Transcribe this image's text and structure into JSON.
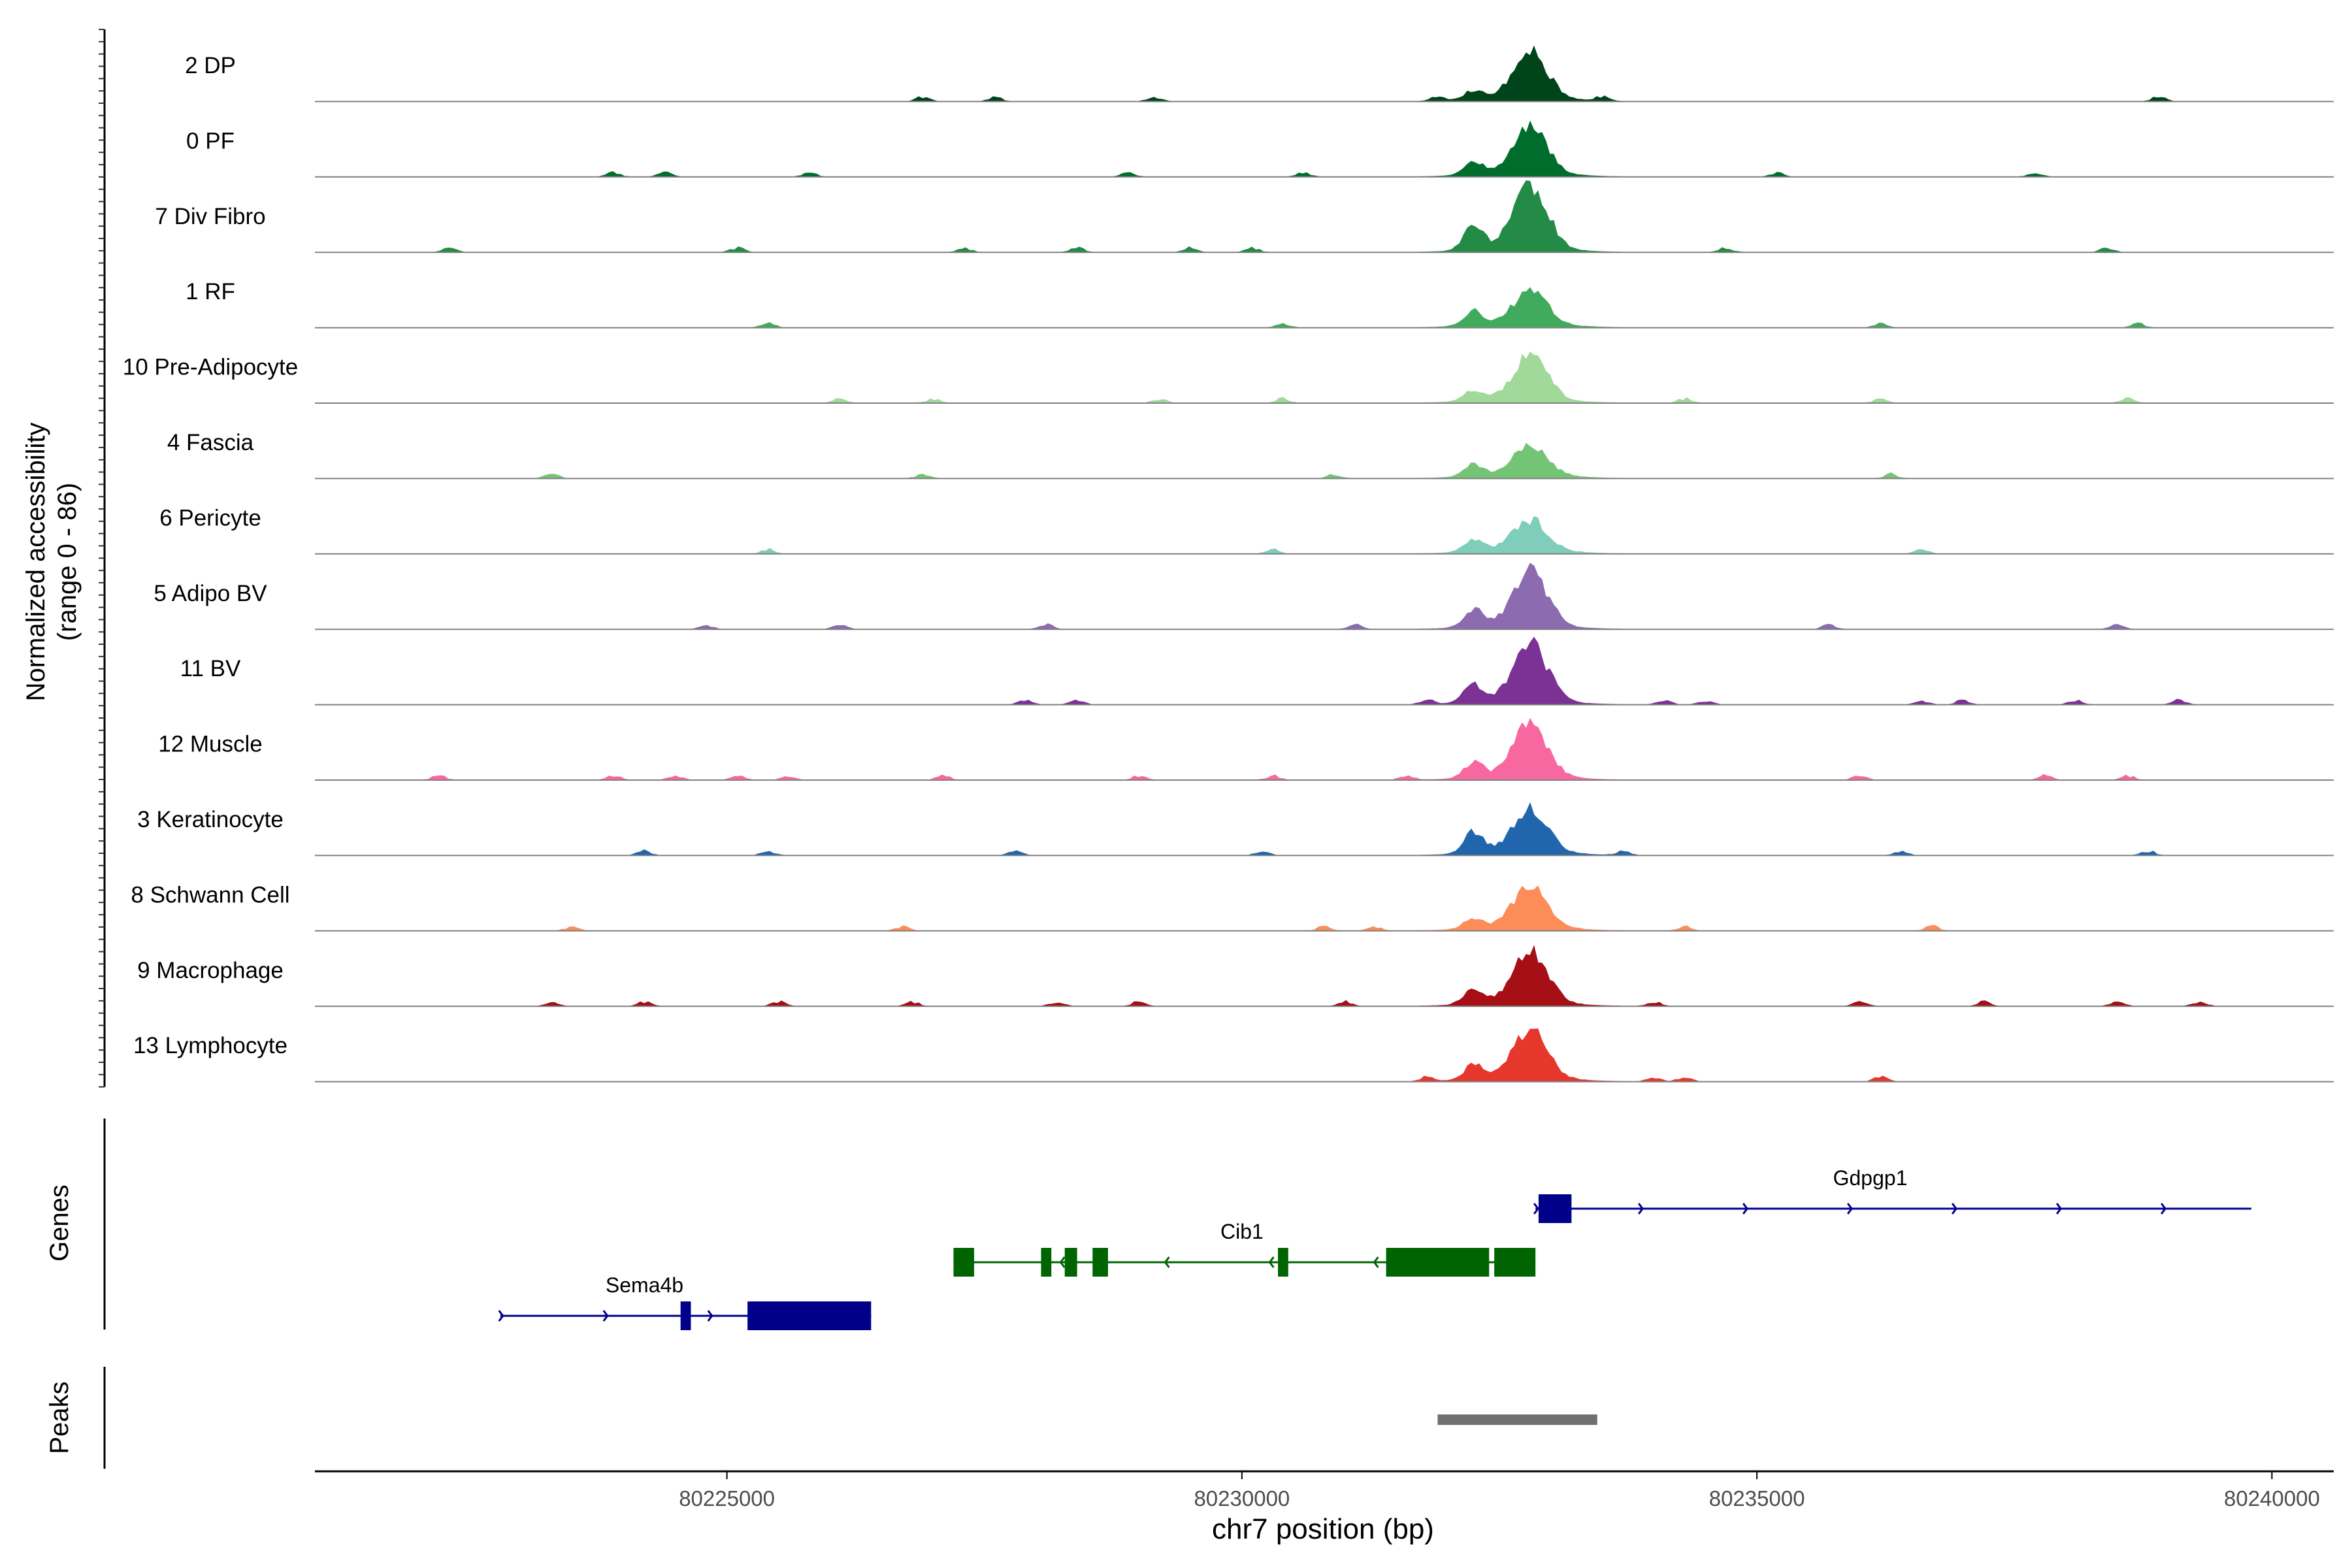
{
  "chart_data": {
    "type": "area",
    "subtype": "genome-browser coverage tracks",
    "y_axis_title_line1": "Normalized accessibility",
    "y_axis_title_line2": "(range 0 - 86)",
    "ylim": [
      0,
      86
    ],
    "xlabel": "chr7 position (bp)",
    "xlim": [
      80221000,
      80240600
    ],
    "x_ticks": [
      80225000,
      80230000,
      80235000,
      80240000
    ],
    "x_tick_labels": [
      "80225000",
      "80230000",
      "80235000",
      "80240000"
    ],
    "tracks": [
      {
        "name": "2 DP",
        "color": "#00441b",
        "main_height": 0.62,
        "shoulder_height": 0.12,
        "noise": [
          80226900,
          80227600,
          80229150,
          80231900,
          80233500,
          80238900
        ]
      },
      {
        "name": "0 PF",
        "color": "#006d2c",
        "main_height": 0.62,
        "shoulder_height": 0.18,
        "noise": [
          80223900,
          80224400,
          80225800,
          80228900,
          80230600,
          80235200,
          80237700
        ]
      },
      {
        "name": "7 Div Fibro",
        "color": "#238b45",
        "main_height": 0.88,
        "shoulder_height": 0.35,
        "noise": [
          80222300,
          80225100,
          80227300,
          80228400,
          80229500,
          80230100,
          80234700,
          80238400
        ]
      },
      {
        "name": "1 RF",
        "color": "#41ab5d",
        "main_height": 0.44,
        "shoulder_height": 0.2,
        "noise": [
          80225400,
          80230400,
          80236200,
          80238700
        ]
      },
      {
        "name": "10 Pre-Adipocyte",
        "color": "#a1d99b",
        "main_height": 0.6,
        "shoulder_height": 0.14,
        "noise": [
          80226100,
          80227000,
          80229200,
          80230400,
          80234300,
          80236200,
          80238600
        ]
      },
      {
        "name": "4 Fascia",
        "color": "#74c476",
        "main_height": 0.4,
        "shoulder_height": 0.16,
        "noise": [
          80223300,
          80226900,
          80230900,
          80236300
        ]
      },
      {
        "name": "6 Pericyte",
        "color": "#7fcdbb",
        "main_height": 0.42,
        "shoulder_height": 0.15,
        "noise": [
          80225400,
          80230300,
          80236600
        ]
      },
      {
        "name": "5 Adipo BV",
        "color": "#8c6bb1",
        "main_height": 0.75,
        "shoulder_height": 0.26,
        "noise": [
          80224800,
          80226100,
          80228100,
          80231100,
          80235700,
          80238500
        ]
      },
      {
        "name": "11 BV",
        "color": "#7b3294",
        "main_height": 0.8,
        "shoulder_height": 0.25,
        "noise": [
          80227900,
          80228400,
          80231800,
          80234100,
          80234500,
          80236600,
          80237000,
          80238100,
          80239100
        ]
      },
      {
        "name": "12 Muscle",
        "color": "#f768a1",
        "main_height": 0.72,
        "shoulder_height": 0.22,
        "noise": [
          80222200,
          80223900,
          80224500,
          80225100,
          80225600,
          80227100,
          80229000,
          80230300,
          80231600,
          80236000,
          80237800,
          80238600
        ]
      },
      {
        "name": "3 Keratinocyte",
        "color": "#2166ac",
        "main_height": 0.58,
        "shoulder_height": 0.3,
        "noise": [
          80224200,
          80225400,
          80227800,
          80230200,
          80233700,
          80236400,
          80238800
        ]
      },
      {
        "name": "8 Schwann Cell",
        "color": "#fc8d59",
        "main_height": 0.58,
        "shoulder_height": 0.14,
        "noise": [
          80223500,
          80226700,
          80230800,
          80231300,
          80234300,
          80236700
        ]
      },
      {
        "name": "9 Macrophage",
        "color": "#a50f15",
        "main_height": 0.72,
        "shoulder_height": 0.22,
        "noise": [
          80223300,
          80224200,
          80225500,
          80226800,
          80228200,
          80229000,
          80231000,
          80234000,
          80236000,
          80237200,
          80238500,
          80239300
        ]
      },
      {
        "name": "13 Lymphocyte",
        "color": "#e6372c",
        "main_height": 0.65,
        "shoulder_height": 0.2,
        "noise": [
          80231800,
          80234000,
          80234300,
          80236200
        ]
      }
    ],
    "genes_label": "Genes",
    "genes": [
      {
        "name": "Sema4b",
        "strand": "+",
        "color": "#00008b",
        "start": 80222800,
        "end": 80226400,
        "exons": [
          [
            80224550,
            80224650
          ],
          [
            80225200,
            80226400
          ]
        ],
        "row": 3
      },
      {
        "name": "Cib1",
        "strand": "-",
        "color": "#006400",
        "start": 80227200,
        "end": 80232850,
        "exons": [
          [
            80227200,
            80227400
          ],
          [
            80228050,
            80228150
          ],
          [
            80228280,
            80228400
          ],
          [
            80228550,
            80228700
          ],
          [
            80230350,
            80230450
          ],
          [
            80231400,
            80232400
          ],
          [
            80232450,
            80232850
          ]
        ],
        "row": 2
      },
      {
        "name": "Gdpgp1",
        "strand": "+",
        "color": "#00008b",
        "start": 80232850,
        "end": 80239800,
        "exons": [
          [
            80232880,
            80233200
          ]
        ],
        "row": 1
      }
    ],
    "peaks_label": "Peaks",
    "peaks": [
      {
        "start": 80231900,
        "end": 80233450,
        "color": "#707070"
      }
    ]
  }
}
